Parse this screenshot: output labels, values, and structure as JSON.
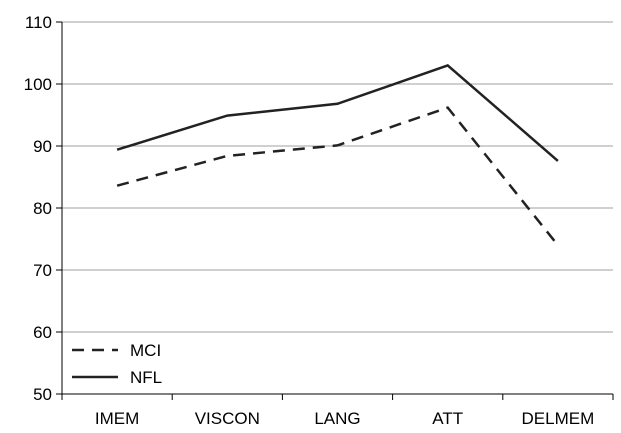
{
  "chart_data": {
    "type": "line",
    "categories": [
      "IMEM",
      "VISCON",
      "LANG",
      "ATT",
      "DELMEM"
    ],
    "series": [
      {
        "name": "MCI",
        "values": [
          83.6,
          88.4,
          90.1,
          96.2,
          74.0
        ],
        "style": "dashed",
        "color": "#222222"
      },
      {
        "name": "NFL",
        "values": [
          89.4,
          94.9,
          96.8,
          103.0,
          87.6
        ],
        "style": "solid",
        "color": "#222222"
      }
    ],
    "ylim": [
      50,
      110
    ],
    "yticks": [
      50,
      60,
      70,
      80,
      90,
      100,
      110
    ],
    "grid": true,
    "legend": "bottom-left",
    "title": "",
    "xlabel": "",
    "ylabel": ""
  }
}
